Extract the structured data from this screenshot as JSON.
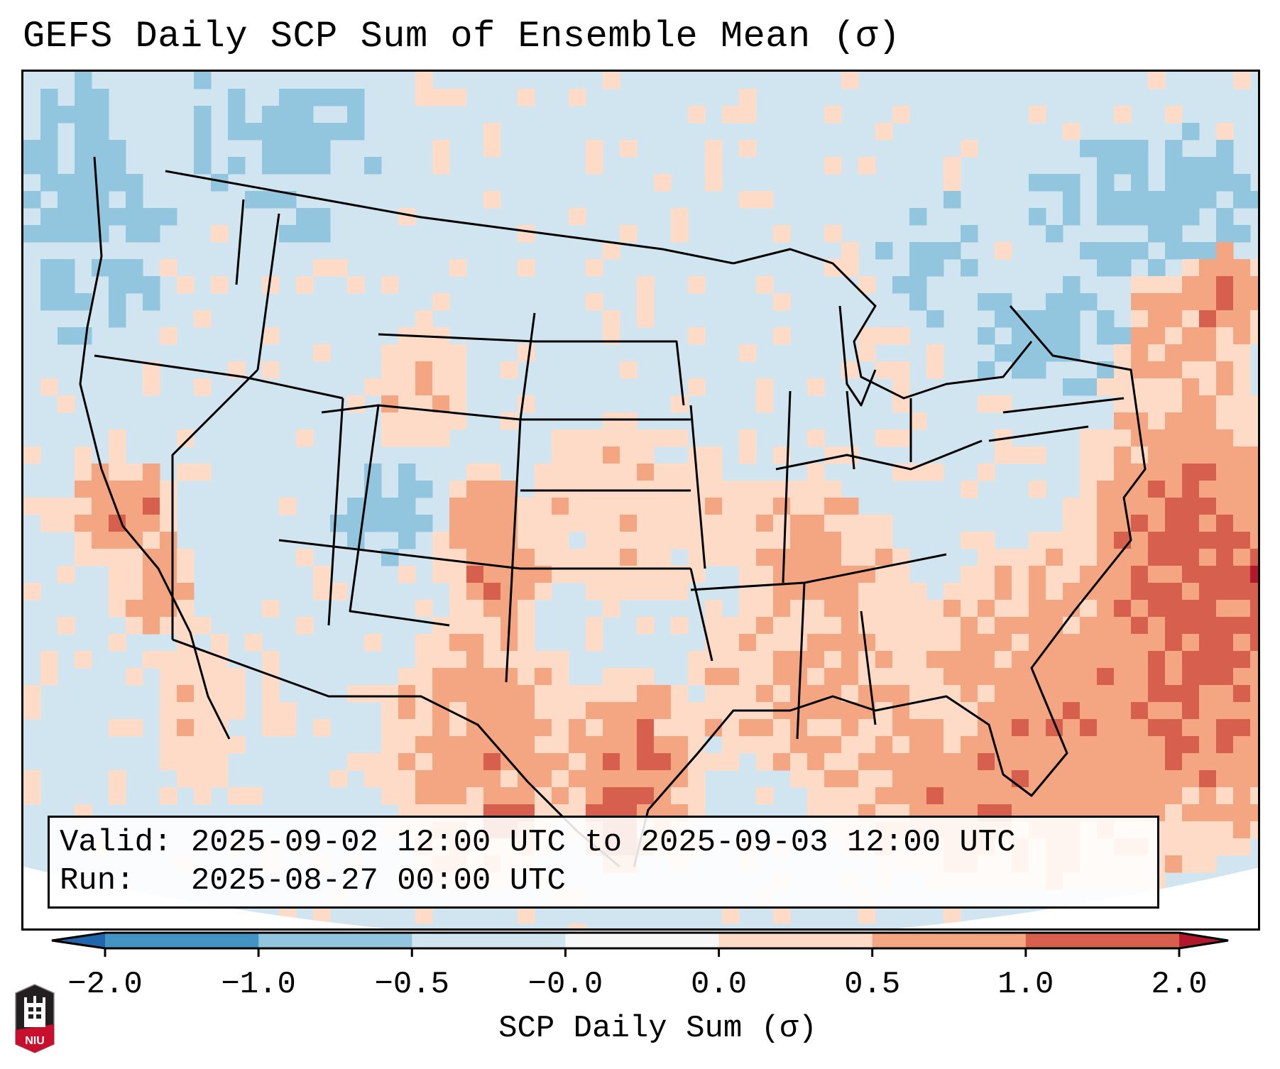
{
  "title": "GEFS Daily SCP Sum of Ensemble Mean (σ)",
  "info_box": {
    "valid_line": "Valid: 2025-09-02 12:00 UTC to 2025-09-03 12:00 UTC",
    "run_line": "Run:   2025-08-27 00:00 UTC"
  },
  "colorbar": {
    "label": "SCP Daily Sum (σ)",
    "ticks": [
      "−2.0",
      "−1.0",
      "−0.5",
      "−0.0",
      "0.0",
      "0.5",
      "1.0",
      "2.0"
    ],
    "bins": [
      {
        "range": "< -2.0",
        "color": "#2166ac"
      },
      {
        "range": "-2.0 to -1.0",
        "color": "#4393c3"
      },
      {
        "range": "-1.0 to -0.5",
        "color": "#92c5de"
      },
      {
        "range": "-0.5 to -0.0",
        "color": "#d1e5f0"
      },
      {
        "range": "-0.0 to 0.0",
        "color": "#f7f7f7"
      },
      {
        "range": "0.0 to 0.5",
        "color": "#fddbc7"
      },
      {
        "range": "0.5 to 1.0",
        "color": "#f4a582"
      },
      {
        "range": "1.0 to 2.0",
        "color": "#d6604d"
      },
      {
        "range": "> 2.0",
        "color": "#b2182b"
      }
    ],
    "extend": "both"
  },
  "logo": {
    "text": "NIU",
    "icon": "niu-castle-logo-icon"
  },
  "map": {
    "projection": "Lambert conformal (CONUS)",
    "features": [
      "state borders",
      "coastlines",
      "Great Lakes",
      "Gulf of Mexico",
      "Atlantic Ocean",
      "Pacific Ocean"
    ],
    "regions": [
      {
        "name": "Southeast US / Gulf Coast",
        "category": "0.5 to 2.0"
      },
      {
        "name": "Western Atlantic off Carolinas",
        "category": "1.0 to >2.0"
      },
      {
        "name": "South Texas coast",
        "category": "1.0 to >2.0"
      },
      {
        "name": "Eastern Colorado / NM",
        "category": "1.0 to 2.0"
      },
      {
        "name": "Southern California offshore",
        "category": "1.0 to 2.0"
      },
      {
        "name": "Central Plains (KS/NE/OK)",
        "category": "0.0 to 0.5"
      },
      {
        "name": "Pacific Northwest offshore",
        "category": "-1.0 to -0.5"
      },
      {
        "name": "Northeast / Great Lakes / Quebec",
        "category": "-1.0 to -0.5"
      },
      {
        "name": "Utah / western Colorado",
        "category": "-1.0 to -0.5"
      }
    ]
  }
}
